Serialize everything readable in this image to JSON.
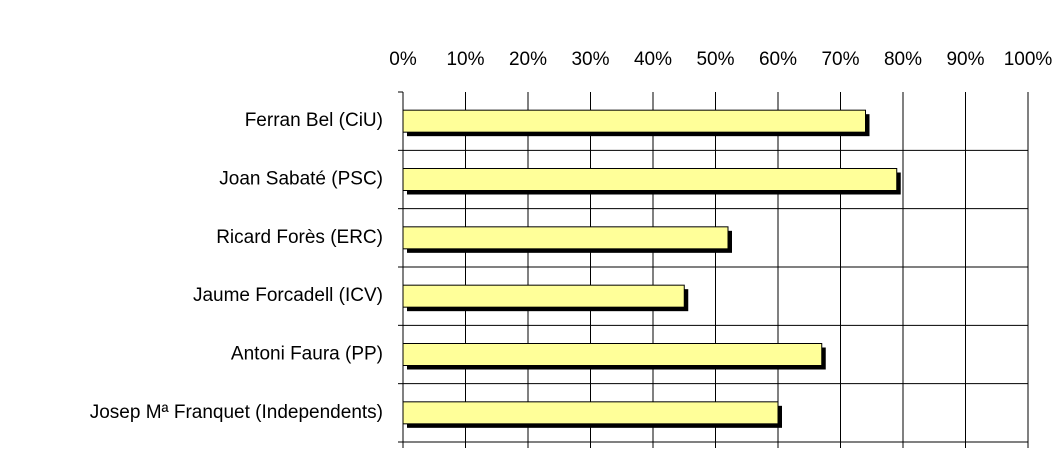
{
  "chart_data": {
    "type": "bar",
    "orientation": "horizontal",
    "categories": [
      "Ferran Bel (CiU)",
      "Joan Sabaté (PSC)",
      "Ricard Forès (ERC)",
      "Jaume Forcadell (ICV)",
      "Antoni Faura (PP)",
      "Josep Mª Franquet (Independents)"
    ],
    "values": [
      74,
      79,
      52,
      45,
      67,
      60
    ],
    "color": "#ffff99",
    "xlim": [
      0,
      100
    ],
    "xticks": [
      {
        "value": 0,
        "label": "0%"
      },
      {
        "value": 10,
        "label": "10%"
      },
      {
        "value": 20,
        "label": "20%"
      },
      {
        "value": 30,
        "label": "30%"
      },
      {
        "value": 40,
        "label": "40%"
      },
      {
        "value": 50,
        "label": "50%"
      },
      {
        "value": 60,
        "label": "60%"
      },
      {
        "value": 70,
        "label": "70%"
      },
      {
        "value": 80,
        "label": "80%"
      },
      {
        "value": 90,
        "label": "90%"
      },
      {
        "value": 100,
        "label": "100%"
      }
    ],
    "grid": true
  }
}
